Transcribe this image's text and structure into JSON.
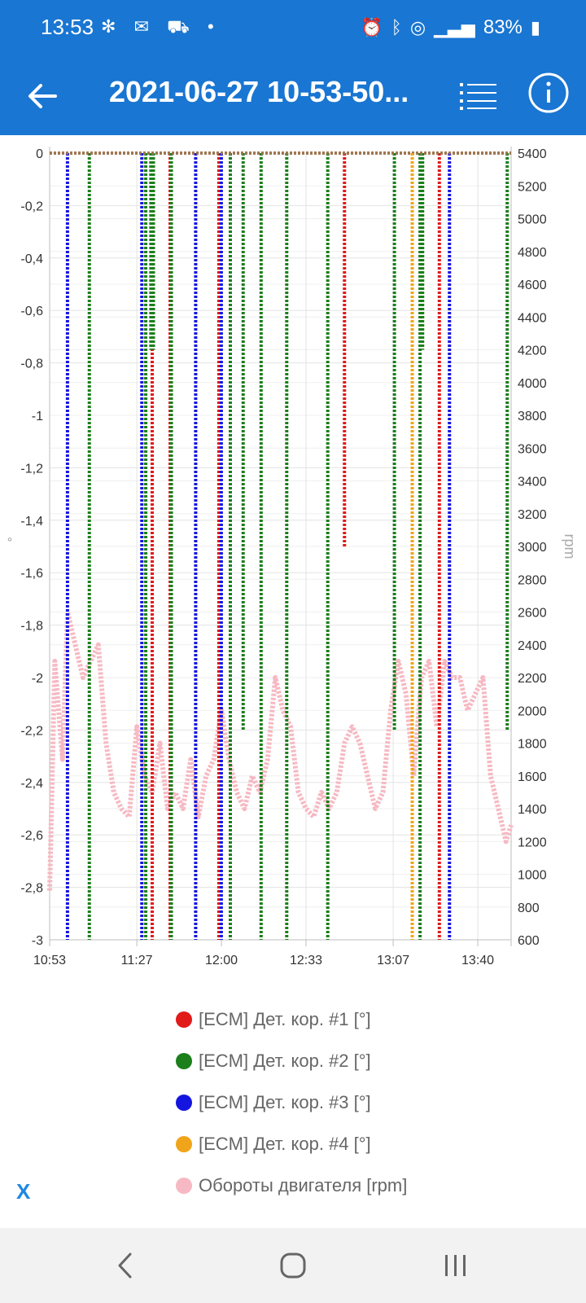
{
  "status_bar": {
    "time": "13:53",
    "left_icons": [
      "fan-icon",
      "mail-icon",
      "car-icon",
      "dot-icon"
    ],
    "battery": "83%"
  },
  "app_bar": {
    "title": "2021-06-27 10-53-50..."
  },
  "chart": {
    "left_axis_unit": "°",
    "right_axis_unit": "rpm",
    "left_ticks": [
      "0",
      "-0,2",
      "-0,4",
      "-0,6",
      "-0,8",
      "-1",
      "-1,2",
      "-1,4",
      "-1,6",
      "-1,8",
      "-2",
      "-2,2",
      "-2,4",
      "-2,6",
      "-2,8",
      "-3"
    ],
    "right_ticks": [
      "5400",
      "5200",
      "5000",
      "4800",
      "4600",
      "4400",
      "4200",
      "4000",
      "3800",
      "3600",
      "3400",
      "3200",
      "3000",
      "2800",
      "2600",
      "2400",
      "2200",
      "2000",
      "1800",
      "1600",
      "1400",
      "1200",
      "1000",
      "800",
      "600"
    ],
    "x_ticks": [
      "10:53",
      "11:27",
      "12:00",
      "12:33",
      "13:07",
      "13:40"
    ]
  },
  "chart_data": {
    "type": "line",
    "x_range": [
      "10:53",
      "13:53"
    ],
    "left_ylim": [
      -3,
      0
    ],
    "right_ylim": [
      600,
      5400
    ],
    "grid": true,
    "series": [
      {
        "name": "[ECM] Дет. кор. #1 [°]",
        "color": "#e11a1a",
        "axis": "left",
        "drops": [
          {
            "t": "11:33",
            "min": -3
          },
          {
            "t": "11:40",
            "min": -0.75
          },
          {
            "t": "11:40",
            "min": -3
          },
          {
            "t": "11:59",
            "min": -3
          },
          {
            "t": "12:48",
            "min": -1.5
          },
          {
            "t": "13:25",
            "min": -3
          }
        ]
      },
      {
        "name": "[ECM] Дет. кор. #2 [°]",
        "color": "#1b7f1b",
        "axis": "left",
        "drops": [
          {
            "t": "11:08",
            "min": -3
          },
          {
            "t": "11:30",
            "min": -3
          },
          {
            "t": "11:32",
            "min": -0.75
          },
          {
            "t": "11:33",
            "min": -0.75
          },
          {
            "t": "11:40",
            "min": -3
          },
          {
            "t": "12:03",
            "min": -3
          },
          {
            "t": "12:08",
            "min": -2.2
          },
          {
            "t": "12:15",
            "min": -3
          },
          {
            "t": "12:25",
            "min": -3
          },
          {
            "t": "12:41",
            "min": -3
          },
          {
            "t": "13:07",
            "min": -2.2
          },
          {
            "t": "13:17",
            "min": -3
          },
          {
            "t": "13:18",
            "min": -0.75
          },
          {
            "t": "13:51",
            "min": -2.2
          }
        ]
      },
      {
        "name": "[ECM] Дет. кор. #3 [°]",
        "color": "#1515e0",
        "axis": "left",
        "drops": [
          {
            "t": "10:59",
            "min": -3
          },
          {
            "t": "11:28",
            "min": -3
          },
          {
            "t": "11:49",
            "min": -3
          },
          {
            "t": "11:59",
            "min": -3
          },
          {
            "t": "13:28",
            "min": -3
          }
        ]
      },
      {
        "name": "[ECM] Дет. кор. #4 [°]",
        "color": "#f0a419",
        "axis": "left",
        "drops": [
          {
            "t": "13:13",
            "min": -3
          }
        ]
      },
      {
        "name": "Обороты двигателя [rpm]",
        "color": "#f6b9c3",
        "axis": "right",
        "points": [
          [
            "10:53",
            900
          ],
          [
            "10:55",
            2300
          ],
          [
            "10:58",
            1700
          ],
          [
            "11:00",
            2600
          ],
          [
            "11:03",
            2400
          ],
          [
            "11:06",
            2200
          ],
          [
            "11:09",
            2300
          ],
          [
            "11:12",
            2400
          ],
          [
            "11:15",
            1800
          ],
          [
            "11:18",
            1500
          ],
          [
            "11:21",
            1400
          ],
          [
            "11:24",
            1350
          ],
          [
            "11:27",
            1900
          ],
          [
            "11:30",
            1600
          ],
          [
            "11:33",
            1500
          ],
          [
            "11:36",
            1800
          ],
          [
            "11:39",
            1400
          ],
          [
            "11:42",
            1500
          ],
          [
            "11:45",
            1400
          ],
          [
            "11:48",
            1700
          ],
          [
            "11:51",
            1350
          ],
          [
            "11:54",
            1600
          ],
          [
            "11:57",
            1700
          ],
          [
            "12:00",
            2000
          ],
          [
            "12:03",
            1700
          ],
          [
            "12:06",
            1500
          ],
          [
            "12:09",
            1400
          ],
          [
            "12:12",
            1600
          ],
          [
            "12:15",
            1500
          ],
          [
            "12:18",
            1700
          ],
          [
            "12:21",
            2200
          ],
          [
            "12:24",
            2000
          ],
          [
            "12:27",
            1900
          ],
          [
            "12:30",
            1500
          ],
          [
            "12:33",
            1400
          ],
          [
            "12:36",
            1350
          ],
          [
            "12:39",
            1500
          ],
          [
            "12:42",
            1400
          ],
          [
            "12:45",
            1500
          ],
          [
            "12:48",
            1800
          ],
          [
            "12:51",
            1900
          ],
          [
            "12:54",
            1800
          ],
          [
            "12:57",
            1600
          ],
          [
            "13:00",
            1400
          ],
          [
            "13:03",
            1500
          ],
          [
            "13:06",
            2000
          ],
          [
            "13:09",
            2300
          ],
          [
            "13:12",
            2100
          ],
          [
            "13:15",
            1600
          ],
          [
            "13:18",
            2200
          ],
          [
            "13:21",
            2300
          ],
          [
            "13:24",
            1900
          ],
          [
            "13:27",
            2300
          ],
          [
            "13:30",
            2200
          ],
          [
            "13:33",
            2200
          ],
          [
            "13:36",
            2000
          ],
          [
            "13:39",
            2100
          ],
          [
            "13:42",
            2200
          ],
          [
            "13:45",
            1600
          ],
          [
            "13:48",
            1400
          ],
          [
            "13:51",
            1200
          ],
          [
            "13:53",
            1300
          ]
        ]
      }
    ]
  },
  "legend": {
    "items": [
      {
        "label": "[ECM] Дет. кор. #1 [°]",
        "color": "#e11a1a"
      },
      {
        "label": "[ECM] Дет. кор. #2 [°]",
        "color": "#1b7f1b"
      },
      {
        "label": "[ECM] Дет. кор. #3 [°]",
        "color": "#1515e0"
      },
      {
        "label": "[ECM] Дет. кор. #4 [°]",
        "color": "#f0a419"
      },
      {
        "label": "Обороты двигателя [rpm]",
        "color": "#f6b9c3"
      }
    ],
    "close_label": "X"
  },
  "colors": {
    "app_bar": "#1976d2",
    "accent": "#1e88e5"
  }
}
